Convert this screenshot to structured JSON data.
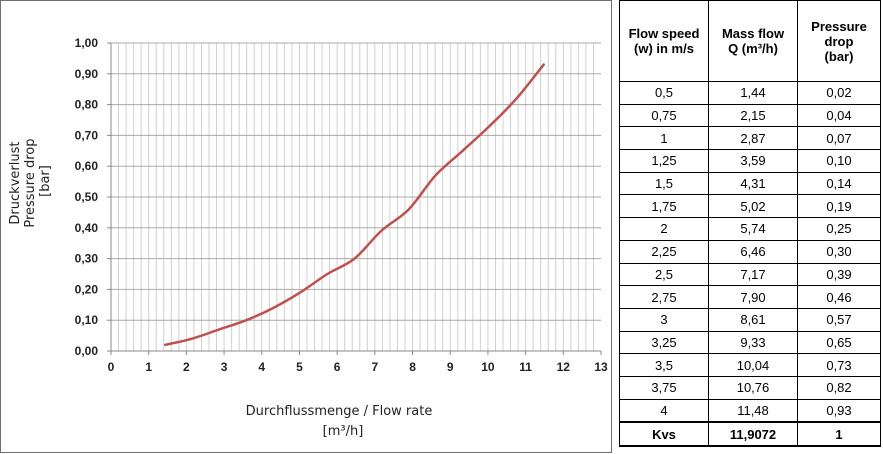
{
  "chart_data": {
    "type": "line",
    "xlabel": "Durchflussmenge / Flow rate",
    "xlabel_unit": "[m³/h]",
    "ylabel_lines": [
      "Druckverlust",
      "Pressure drop",
      "[bar]"
    ],
    "xlim": [
      0,
      13
    ],
    "ylim": [
      0,
      1
    ],
    "x_ticks": [
      "0",
      "1",
      "2",
      "3",
      "4",
      "5",
      "6",
      "7",
      "8",
      "9",
      "10",
      "11",
      "12",
      "13"
    ],
    "y_ticks": [
      "0,00",
      "0,10",
      "0,20",
      "0,30",
      "0,40",
      "0,50",
      "0,60",
      "0,70",
      "0,80",
      "0,90",
      "1,00"
    ],
    "grid": true,
    "line_color": "#c0504d",
    "series": [
      {
        "x": [
          1.44,
          2.15,
          2.87,
          3.59,
          4.31,
          5.02,
          5.74,
          6.46,
          7.17,
          7.9,
          8.61,
          9.33,
          10.04,
          10.76,
          11.48
        ],
        "y": [
          0.02,
          0.04,
          0.07,
          0.1,
          0.14,
          0.19,
          0.25,
          0.3,
          0.39,
          0.46,
          0.57,
          0.65,
          0.73,
          0.82,
          0.93
        ]
      }
    ]
  },
  "table": {
    "headers": [
      [
        "Flow speed",
        "(w) in m/s"
      ],
      [
        "Mass flow",
        "Q (m³/h)"
      ],
      [
        "Pressure",
        "drop",
        "(bar)"
      ]
    ],
    "rows": [
      [
        "0,5",
        "1,44",
        "0,02"
      ],
      [
        "0,75",
        "2,15",
        "0,04"
      ],
      [
        "1",
        "2,87",
        "0,07"
      ],
      [
        "1,25",
        "3,59",
        "0,10"
      ],
      [
        "1,5",
        "4,31",
        "0,14"
      ],
      [
        "1,75",
        "5,02",
        "0,19"
      ],
      [
        "2",
        "5,74",
        "0,25"
      ],
      [
        "2,25",
        "6,46",
        "0,30"
      ],
      [
        "2,5",
        "7,17",
        "0,39"
      ],
      [
        "2,75",
        "7,90",
        "0,46"
      ],
      [
        "3",
        "8,61",
        "0,57"
      ],
      [
        "3,25",
        "9,33",
        "0,65"
      ],
      [
        "3,5",
        "10,04",
        "0,73"
      ],
      [
        "3,75",
        "10,76",
        "0,82"
      ],
      [
        "4",
        "11,48",
        "0,93"
      ]
    ],
    "footer": [
      "Kvs",
      "11,9072",
      "1"
    ]
  }
}
